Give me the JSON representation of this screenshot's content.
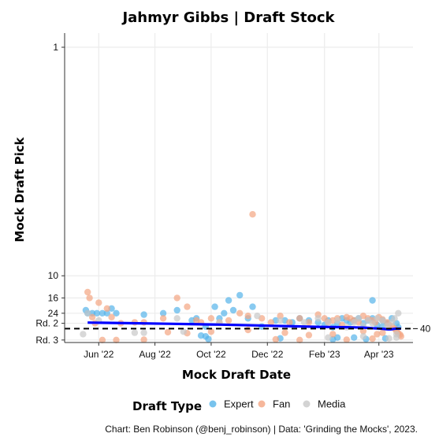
{
  "chart_data": {
    "type": "scatter",
    "title": "Jahmyr Gibbs | Draft Stock",
    "xlabel": "Mock Draft Date",
    "ylabel": "Mock Draft Pick",
    "x_ticks": [
      "Jun '22",
      "Aug '22",
      "Oct '22",
      "Dec '22",
      "Feb '23",
      "Apr '23"
    ],
    "y_ticks": [
      {
        "pick": 1,
        "label": "1"
      },
      {
        "pick": 10,
        "label": "10"
      },
      {
        "pick": 16,
        "label": "16"
      },
      {
        "pick": 24,
        "label": "24"
      },
      {
        "pick": 33,
        "label": "Rd. 2"
      },
      {
        "pick": 65,
        "label": "Rd. 3"
      }
    ],
    "reference_line": {
      "pick": 40,
      "label": "40"
    },
    "grid": true,
    "legend": {
      "title": "Draft Type",
      "position": "bottom"
    },
    "series": [
      {
        "name": "Expert",
        "color": "#56B4E9",
        "points": [
          [
            "2022-05-18",
            22
          ],
          [
            "2022-05-20",
            24
          ],
          [
            "2022-05-25",
            24
          ],
          [
            "2022-05-30",
            24
          ],
          [
            "2022-06-05",
            24
          ],
          [
            "2022-06-10",
            24
          ],
          [
            "2022-06-15",
            21
          ],
          [
            "2022-06-20",
            24
          ],
          [
            "2022-07-20",
            25
          ],
          [
            "2022-08-10",
            24
          ],
          [
            "2022-08-25",
            22
          ],
          [
            "2022-09-10",
            30
          ],
          [
            "2022-09-15",
            28
          ],
          [
            "2022-09-25",
            37
          ],
          [
            "2022-10-05",
            20
          ],
          [
            "2022-10-10",
            28
          ],
          [
            "2022-10-15",
            24
          ],
          [
            "2022-10-20",
            17
          ],
          [
            "2022-10-25",
            22
          ],
          [
            "2022-11-01",
            15
          ],
          [
            "2022-11-10",
            28
          ],
          [
            "2022-11-15",
            20
          ],
          [
            "2022-11-25",
            37
          ],
          [
            "2022-12-10",
            30
          ],
          [
            "2022-12-20",
            30
          ],
          [
            "2022-12-28",
            32
          ],
          [
            "2023-01-05",
            28
          ],
          [
            "2023-01-15",
            30
          ],
          [
            "2023-01-25",
            32
          ],
          [
            "2023-02-01",
            35
          ],
          [
            "2023-02-05",
            30
          ],
          [
            "2023-02-10",
            38
          ],
          [
            "2023-02-15",
            33
          ],
          [
            "2023-02-20",
            28
          ],
          [
            "2023-02-25",
            30
          ],
          [
            "2023-03-01",
            32
          ],
          [
            "2023-03-05",
            30
          ],
          [
            "2023-03-10",
            28
          ],
          [
            "2023-03-15",
            33
          ],
          [
            "2023-03-20",
            30
          ],
          [
            "2023-03-25",
            28
          ],
          [
            "2023-03-30",
            35
          ],
          [
            "2023-04-05",
            30
          ],
          [
            "2023-04-10",
            33
          ],
          [
            "2023-04-15",
            28
          ],
          [
            "2023-04-20",
            33
          ],
          [
            "2023-04-22",
            38
          ],
          [
            "2023-03-25",
            17
          ],
          [
            "2023-04-05",
            37
          ],
          [
            "2023-02-15",
            58
          ],
          [
            "2023-02-10",
            63
          ],
          [
            "2022-09-28",
            62
          ],
          [
            "2022-09-20",
            53
          ],
          [
            "2022-09-25",
            55
          ],
          [
            "2022-12-15",
            60
          ],
          [
            "2023-03-05",
            58
          ],
          [
            "2023-03-18",
            62
          ],
          [
            "2023-04-08",
            60
          ]
        ]
      },
      {
        "name": "Fan",
        "color": "#F4A582",
        "points": [
          [
            "2022-05-20",
            14
          ],
          [
            "2022-05-22",
            16
          ],
          [
            "2022-05-25",
            27
          ],
          [
            "2022-05-28",
            33
          ],
          [
            "2022-06-01",
            18
          ],
          [
            "2022-06-10",
            21
          ],
          [
            "2022-06-15",
            27
          ],
          [
            "2022-06-25",
            33
          ],
          [
            "2022-07-10",
            32
          ],
          [
            "2022-07-20",
            32
          ],
          [
            "2022-08-10",
            28
          ],
          [
            "2022-08-25",
            16
          ],
          [
            "2022-09-05",
            20
          ],
          [
            "2022-09-15",
            30
          ],
          [
            "2022-09-20",
            32
          ],
          [
            "2022-10-01",
            28
          ],
          [
            "2022-10-10",
            32
          ],
          [
            "2022-10-20",
            30
          ],
          [
            "2022-11-01",
            24
          ],
          [
            "2022-11-10",
            26
          ],
          [
            "2022-11-15",
            4
          ],
          [
            "2022-11-25",
            28
          ],
          [
            "2022-12-05",
            32
          ],
          [
            "2022-12-15",
            26
          ],
          [
            "2022-12-25",
            32
          ],
          [
            "2023-01-05",
            28
          ],
          [
            "2023-01-15",
            32
          ],
          [
            "2023-01-25",
            25
          ],
          [
            "2023-02-01",
            28
          ],
          [
            "2023-02-05",
            32
          ],
          [
            "2023-02-10",
            30
          ],
          [
            "2023-02-15",
            28
          ],
          [
            "2023-02-20",
            35
          ],
          [
            "2023-02-25",
            27
          ],
          [
            "2023-03-01",
            28
          ],
          [
            "2023-03-05",
            30
          ],
          [
            "2023-03-10",
            32
          ],
          [
            "2023-03-15",
            26
          ],
          [
            "2023-03-20",
            28
          ],
          [
            "2023-03-25",
            30
          ],
          [
            "2023-03-28",
            32
          ],
          [
            "2023-04-01",
            27
          ],
          [
            "2023-04-05",
            29
          ],
          [
            "2023-04-10",
            32
          ],
          [
            "2023-04-12",
            35
          ],
          [
            "2023-04-15",
            37
          ],
          [
            "2023-04-18",
            40
          ],
          [
            "2023-04-20",
            44
          ],
          [
            "2023-04-22",
            48
          ],
          [
            "2023-04-24",
            51
          ],
          [
            "2023-04-25",
            55
          ],
          [
            "2022-08-15",
            46
          ],
          [
            "2022-09-05",
            48
          ],
          [
            "2022-10-01",
            45
          ],
          [
            "2022-11-10",
            42
          ],
          [
            "2022-12-20",
            47
          ],
          [
            "2023-01-15",
            52
          ],
          [
            "2023-02-10",
            50
          ],
          [
            "2023-03-15",
            44
          ],
          [
            "2023-03-30",
            50
          ],
          [
            "2023-04-05",
            47
          ],
          [
            "2022-06-05",
            65
          ],
          [
            "2022-06-20",
            65
          ],
          [
            "2022-07-20",
            64
          ],
          [
            "2022-12-10",
            63
          ],
          [
            "2023-01-05",
            65
          ],
          [
            "2023-02-25",
            64
          ],
          [
            "2023-03-25",
            61
          ]
        ]
      },
      {
        "name": "Media",
        "color": "#C8C8C8",
        "points": [
          [
            "2022-05-15",
            50
          ],
          [
            "2022-05-20",
            24
          ],
          [
            "2022-06-01",
            30
          ],
          [
            "2022-07-10",
            47
          ],
          [
            "2022-07-20",
            47
          ],
          [
            "2022-08-25",
            28
          ],
          [
            "2022-09-01",
            45
          ],
          [
            "2022-10-10",
            32
          ],
          [
            "2022-11-20",
            26
          ],
          [
            "2022-12-15",
            30
          ],
          [
            "2023-01-10",
            32
          ],
          [
            "2023-01-25",
            28
          ],
          [
            "2023-02-05",
            32
          ],
          [
            "2023-02-15",
            30
          ],
          [
            "2023-02-25",
            38
          ],
          [
            "2023-03-05",
            32
          ],
          [
            "2023-03-10",
            28
          ],
          [
            "2023-03-15",
            36
          ],
          [
            "2023-03-20",
            30
          ],
          [
            "2023-03-25",
            33
          ],
          [
            "2023-03-30",
            28
          ],
          [
            "2023-04-05",
            30
          ],
          [
            "2023-04-10",
            36
          ],
          [
            "2023-04-15",
            32
          ],
          [
            "2023-04-18",
            28
          ],
          [
            "2023-04-20",
            50
          ],
          [
            "2023-04-22",
            24
          ],
          [
            "2023-03-15",
            55
          ],
          [
            "2023-02-05",
            58
          ],
          [
            "2023-04-12",
            60
          ],
          [
            "2023-04-20",
            58
          ]
        ]
      }
    ],
    "trend_line": {
      "color": "#0000FF",
      "points": [
        [
          "2022-05-20",
          32.2
        ],
        [
          "2022-07-01",
          32.8
        ],
        [
          "2022-08-15",
          33.6
        ],
        [
          "2022-10-01",
          34.4
        ],
        [
          "2022-11-15",
          35.5
        ],
        [
          "2022-12-20",
          36.4
        ],
        [
          "2023-01-25",
          37.4
        ],
        [
          "2023-02-25",
          38.0
        ],
        [
          "2023-03-15",
          38.5
        ],
        [
          "2023-03-25",
          39.3
        ],
        [
          "2023-04-05",
          40.3
        ],
        [
          "2023-04-10",
          41.0
        ],
        [
          "2023-04-13",
          41.2
        ],
        [
          "2023-04-16",
          40.6
        ],
        [
          "2023-04-20",
          40.0
        ],
        [
          "2023-04-25",
          39.9
        ]
      ]
    }
  },
  "caption": "Chart: Ben Robinson (@benj_robinson) | Data: 'Grinding the Mocks', 2023."
}
